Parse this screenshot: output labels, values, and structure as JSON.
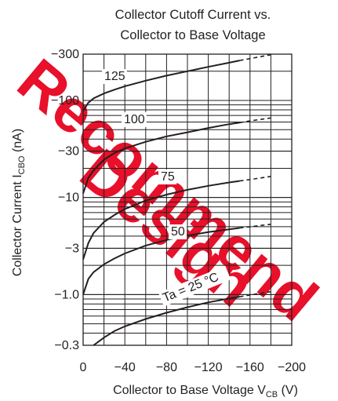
{
  "chart_data": {
    "type": "line",
    "title": "Collector Cutoff Current vs.\nCollector to Base Voltage",
    "title_lines": [
      "Collector Cutoff Current vs.",
      "Collector to Base Voltage"
    ],
    "xlabel": "Collector to Base Voltage",
    "xlabel_sub": "CB",
    "xlabel_var": "V",
    "xlabel_unit": "(V)",
    "ylabel": "Collector Current",
    "ylabel_var": "I",
    "ylabel_sub": "CBO",
    "ylabel_unit": "(nA)",
    "x_scale": "linear",
    "y_scale": "log",
    "xlim": [
      0,
      -200
    ],
    "ylim": [
      -0.3,
      -300
    ],
    "grid": true,
    "x_ticks": [
      0,
      -40,
      -80,
      -120,
      -160,
      -200
    ],
    "x_tick_labels": [
      "0",
      "−40",
      "−80",
      "−120",
      "−160",
      "−200"
    ],
    "y_ticks": [
      -0.3,
      -1.0,
      -3,
      -10,
      -30,
      -100,
      -300
    ],
    "y_tick_labels": [
      "−0.3",
      "−1.0",
      "−3",
      "−10",
      "−30",
      "−100",
      "−300"
    ],
    "series": [
      {
        "name": "125",
        "label": "125",
        "x": [
          0,
          -5,
          -10,
          -20,
          -30,
          -40,
          -60,
          -80,
          -100,
          -120,
          -140,
          -150
        ],
        "y": [
          -78,
          -95,
          -105,
          -118,
          -129,
          -140,
          -160,
          -180,
          -200,
          -222,
          -245,
          -258
        ],
        "extrapolated": {
          "x": [
            -150,
            -160,
            -180
          ],
          "y": [
            -258,
            -270,
            -296
          ]
        }
      },
      {
        "name": "100",
        "label": "100",
        "x": [
          0,
          -5,
          -10,
          -20,
          -30,
          -40,
          -60,
          -80,
          -100,
          -120,
          -140,
          -150
        ],
        "y": [
          -11,
          -16,
          -19,
          -24.5,
          -28.7,
          -32,
          -37.5,
          -42.6,
          -47,
          -52,
          -57,
          -59
        ],
        "extrapolated": {
          "x": [
            -150,
            -160,
            -180
          ],
          "y": [
            -59,
            -61.5,
            -66
          ]
        }
      },
      {
        "name": "75",
        "label": "75",
        "x": [
          0,
          -5,
          -10,
          -20,
          -30,
          -40,
          -60,
          -80,
          -100,
          -120,
          -140,
          -150
        ],
        "y": [
          -2.3,
          -3.4,
          -4.3,
          -5.6,
          -6.6,
          -7.6,
          -9.3,
          -10.7,
          -12.0,
          -13.2,
          -14.3,
          -14.8
        ],
        "extrapolated": {
          "x": [
            -150,
            -160,
            -180
          ],
          "y": [
            -14.8,
            -15.3,
            -16.5
          ]
        }
      },
      {
        "name": "50",
        "label": "50",
        "x": [
          0,
          -5,
          -10,
          -20,
          -30,
          -40,
          -60,
          -80,
          -100,
          -120,
          -140,
          -150
        ],
        "y": [
          -1.0,
          -1.45,
          -1.7,
          -2.05,
          -2.35,
          -2.65,
          -3.2,
          -3.65,
          -4.05,
          -4.4,
          -4.7,
          -4.85
        ],
        "extrapolated": {
          "x": [
            -150,
            -160,
            -180
          ],
          "y": [
            -4.85,
            -5.0,
            -5.3
          ]
        }
      },
      {
        "name": "25",
        "label": "Ta = 25 °C",
        "x": [
          -10,
          -20,
          -30,
          -40,
          -60,
          -80,
          -100,
          -120,
          -140,
          -150
        ],
        "y": [
          -0.3,
          -0.36,
          -0.42,
          -0.47,
          -0.56,
          -0.65,
          -0.74,
          -0.83,
          -0.91,
          -0.95
        ],
        "extrapolated": {
          "x": [
            -150,
            -160,
            -180
          ],
          "y": [
            -0.95,
            -0.99,
            -1.07
          ]
        }
      }
    ],
    "watermark": [
      "Recommend",
      "Design"
    ]
  }
}
